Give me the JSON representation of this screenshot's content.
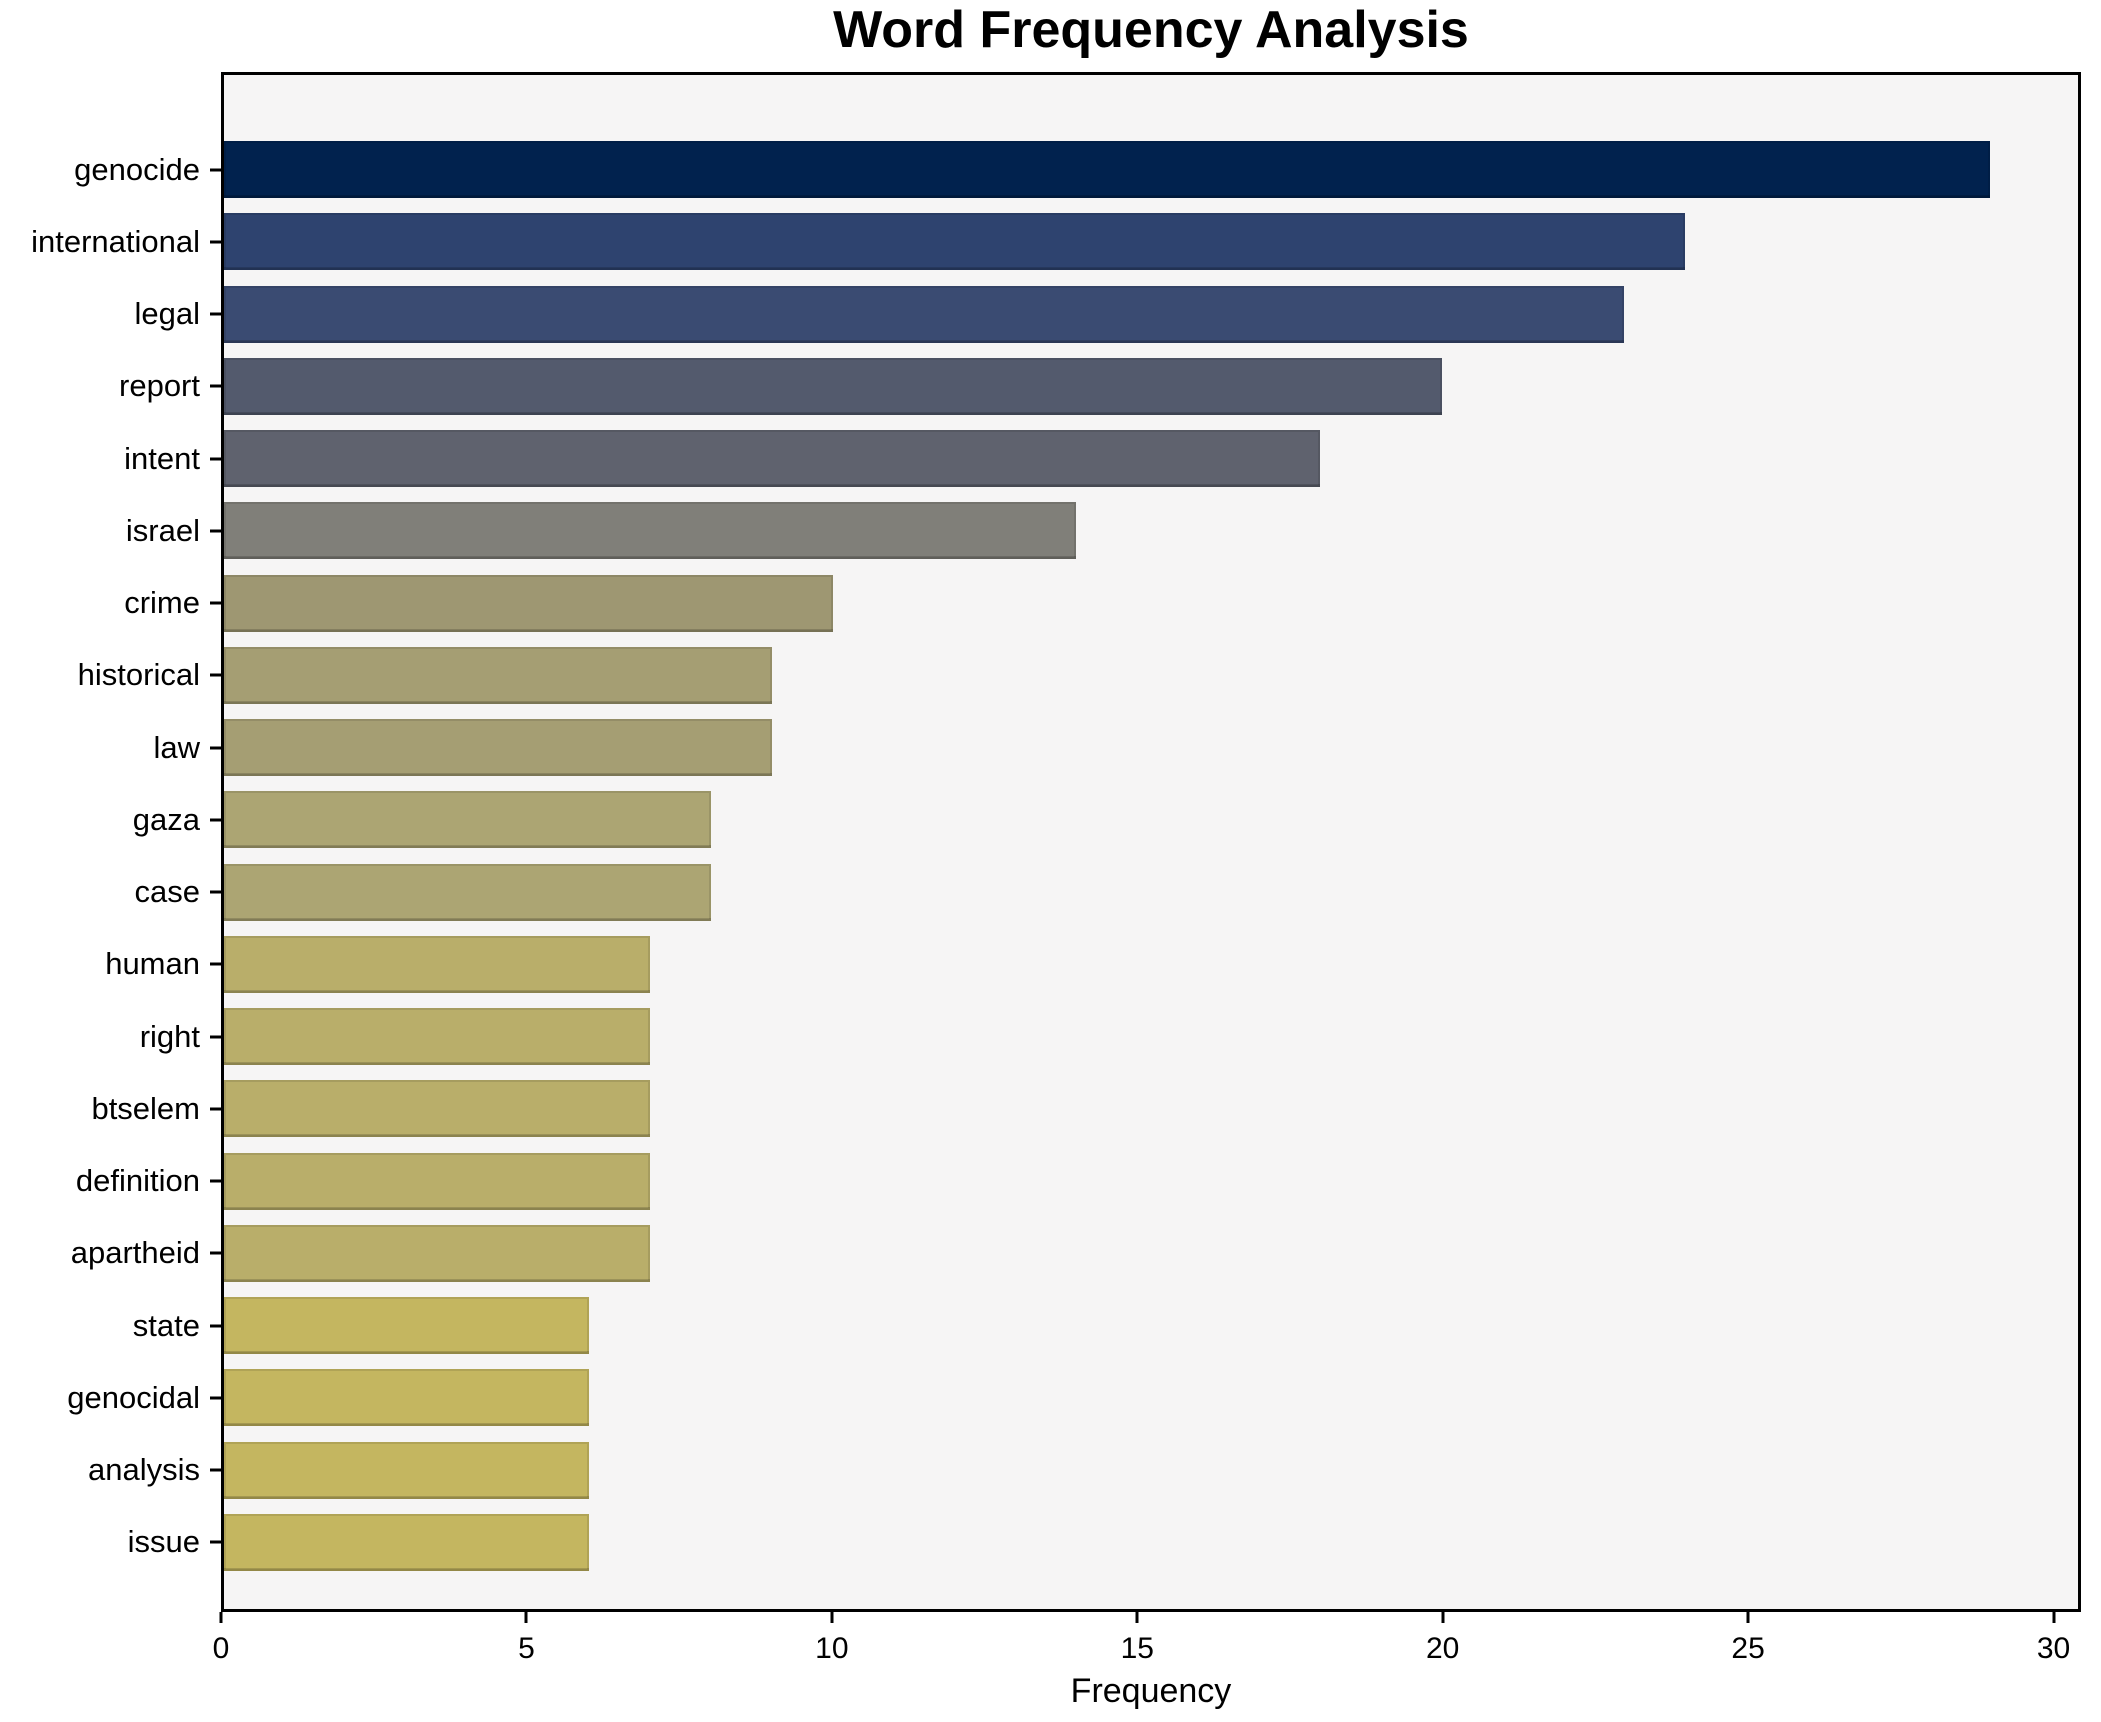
{
  "title": "Word Frequency Analysis",
  "chart_data": {
    "type": "bar",
    "orientation": "horizontal",
    "title": "Word Frequency Analysis",
    "xlabel": "Frequency",
    "ylabel": "",
    "categories": [
      "genocide",
      "international",
      "legal",
      "report",
      "intent",
      "israel",
      "crime",
      "historical",
      "law",
      "gaza",
      "case",
      "human",
      "right",
      "btselem",
      "definition",
      "apartheid",
      "state",
      "genocidal",
      "analysis",
      "issue"
    ],
    "values": [
      29,
      24,
      23,
      20,
      18,
      14,
      10,
      9,
      9,
      8,
      8,
      7,
      7,
      7,
      7,
      7,
      6,
      6,
      6,
      6
    ],
    "bar_colors": [
      "#01224e",
      "#2e436f",
      "#3a4b72",
      "#535a6d",
      "#5f626e",
      "#807f79",
      "#9e9772",
      "#a59e73",
      "#a59e73",
      "#aca573",
      "#aca573",
      "#b9ae6a",
      "#b9ae6a",
      "#b9ae6a",
      "#b9ae6a",
      "#b9ae6a",
      "#c4b660",
      "#c4b660",
      "#c4b660",
      "#c4b660"
    ],
    "xlim": [
      0,
      30.45
    ],
    "xticks": [
      0,
      5,
      10,
      15,
      20,
      25,
      30
    ],
    "grid": false,
    "legend": "none",
    "plot_bg": "#f6f5f5",
    "figure_bg": "#ffffff"
  }
}
